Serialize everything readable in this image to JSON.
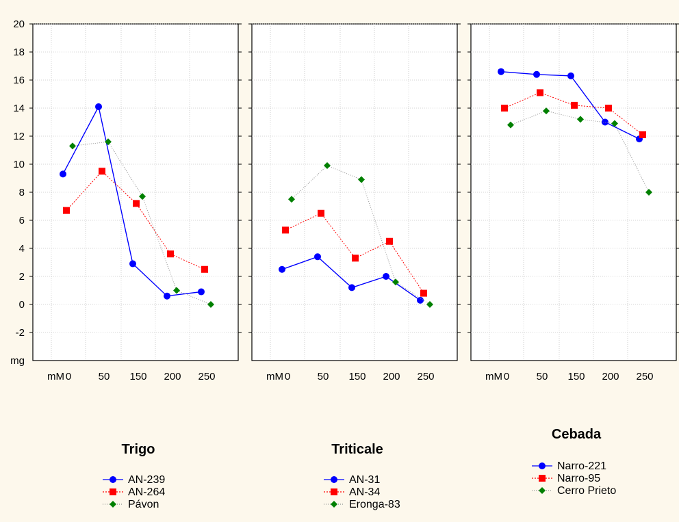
{
  "chart_data": {
    "type": "line",
    "y_unit_label": "mg",
    "x_unit_label": "mM",
    "categories": [
      "0",
      "50",
      "150",
      "200",
      "250"
    ],
    "ylim": [
      -4,
      20
    ],
    "yticks": [
      "20",
      "18",
      "16",
      "14",
      "12",
      "10",
      "8",
      "6",
      "4",
      "2",
      "0",
      "-2"
    ],
    "grid": true,
    "panels": [
      {
        "title": "Trigo",
        "series": [
          {
            "name": "AN-239",
            "style": "solid-circle",
            "color": "#0000ff",
            "values": [
              9.3,
              14.1,
              2.9,
              0.6,
              0.9
            ]
          },
          {
            "name": "AN-264",
            "style": "dotted-square",
            "color": "#ff0000",
            "values": [
              6.7,
              9.5,
              7.2,
              3.6,
              2.5
            ]
          },
          {
            "name": "Pávon",
            "style": "dotted-diamond",
            "color": "#008000",
            "values": [
              11.3,
              11.6,
              7.7,
              1.0,
              0.0
            ]
          }
        ]
      },
      {
        "title": "Triticale",
        "series": [
          {
            "name": "AN-31",
            "style": "solid-circle",
            "color": "#0000ff",
            "values": [
              2.5,
              3.4,
              1.2,
              2.0,
              0.3
            ]
          },
          {
            "name": "AN-34",
            "style": "dotted-square",
            "color": "#ff0000",
            "values": [
              5.3,
              6.5,
              3.3,
              4.5,
              0.8
            ]
          },
          {
            "name": "Eronga-83",
            "style": "dotted-diamond",
            "color": "#008000",
            "values": [
              7.5,
              9.9,
              8.9,
              1.6,
              0.0
            ]
          }
        ]
      },
      {
        "title": "Cebada",
        "series": [
          {
            "name": "Narro-221",
            "style": "solid-circle",
            "color": "#0000ff",
            "values": [
              16.6,
              16.4,
              16.3,
              13.0,
              11.8
            ]
          },
          {
            "name": "Narro-95",
            "style": "dotted-square",
            "color": "#ff0000",
            "values": [
              14.0,
              15.1,
              14.2,
              14.0,
              12.1
            ]
          },
          {
            "name": "Cerro Prieto",
            "style": "dotted-diamond",
            "color": "#008000",
            "values": [
              12.8,
              13.8,
              13.2,
              12.9,
              8.0
            ]
          }
        ]
      }
    ]
  }
}
